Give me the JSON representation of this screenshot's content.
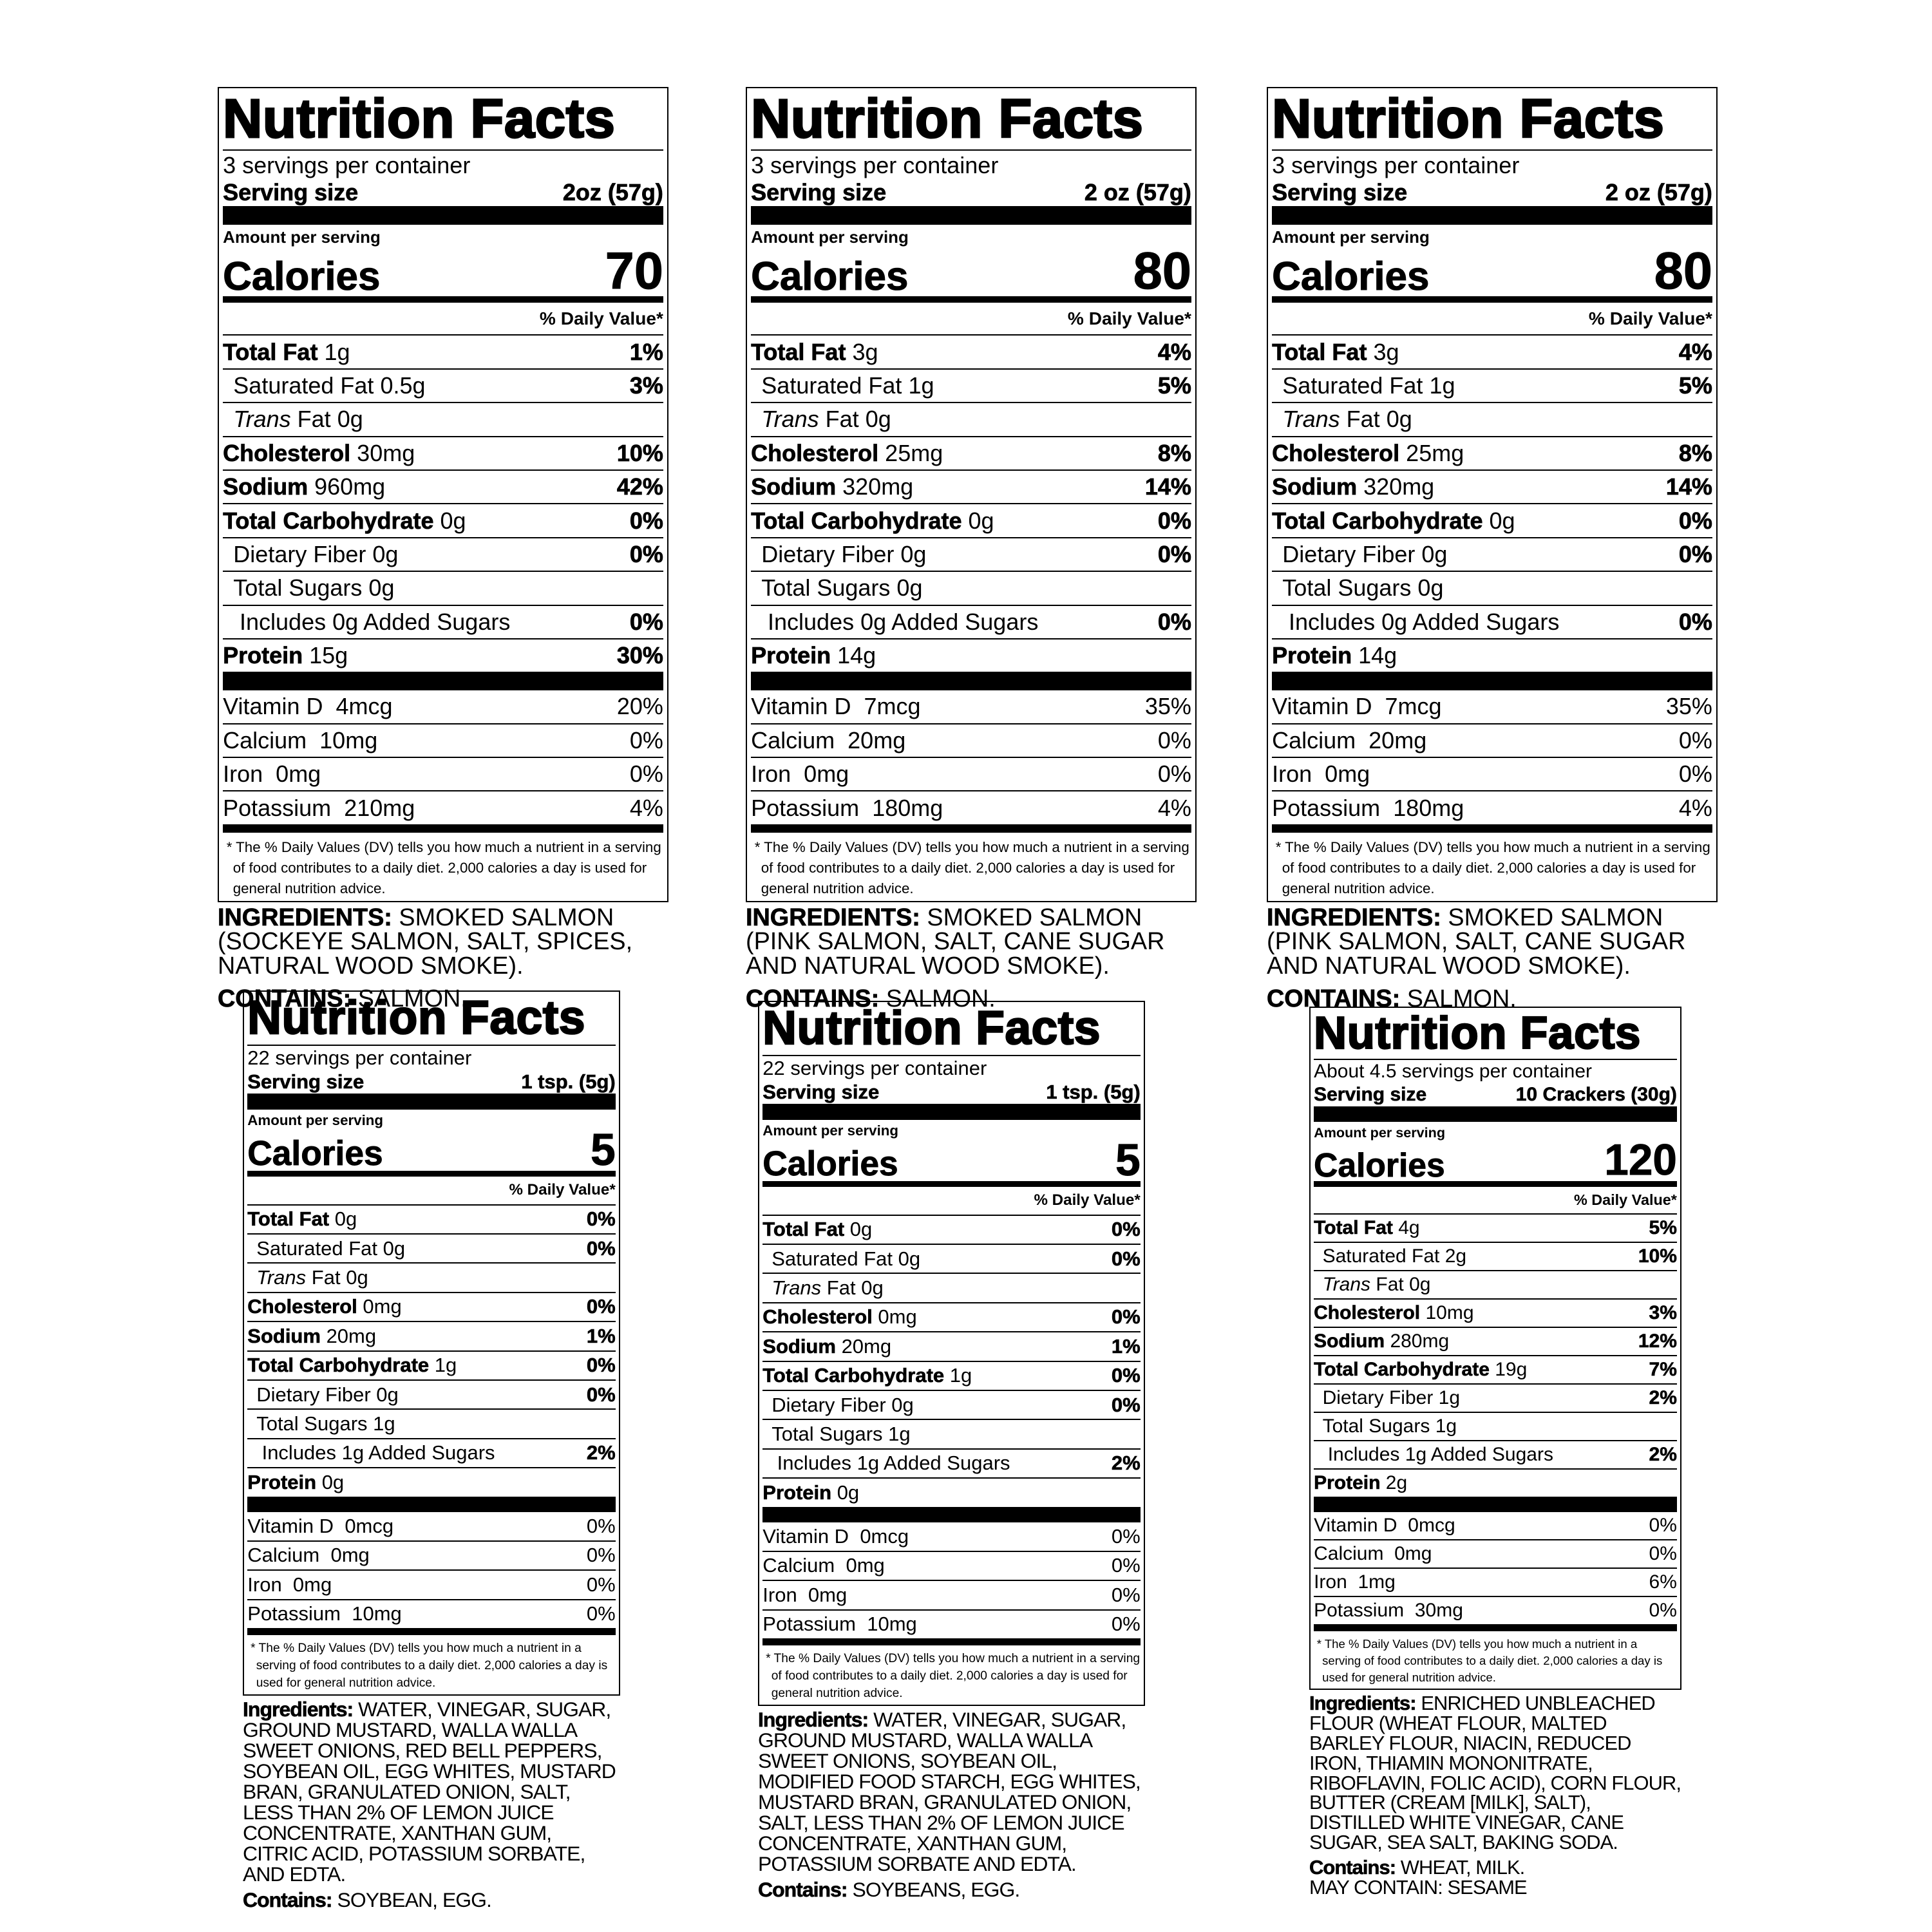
{
  "footnote": "* The % Daily Values (DV) tells you how much a nutrient in a serving of food contributes to a daily diet. 2,000 calories a day is used for general nutrition advice.",
  "title": "Nutrition Facts",
  "amount_per_serving": "Amount per serving",
  "calories_label": "Calories",
  "dv_header": "% Daily Value*",
  "serving_size_label": "Serving size",
  "labels": [
    {
      "servings": "3 servings per container",
      "serving_size": "2oz (57g)",
      "calories": "70",
      "nutrients": [
        {
          "name": "Total Fat",
          "amount": "1g",
          "dv": "1%",
          "bold": true,
          "indent": 0
        },
        {
          "name": "Saturated Fat",
          "amount": "0.5g",
          "dv": "3%",
          "indent": 1
        },
        {
          "italic": "Trans",
          "name": "Fat",
          "amount": "0g",
          "dv": "",
          "indent": 1
        },
        {
          "name": "Cholesterol",
          "amount": "30mg",
          "dv": "10%",
          "bold": true,
          "indent": 0
        },
        {
          "name": "Sodium",
          "amount": "960mg",
          "dv": "42%",
          "bold": true,
          "indent": 0
        },
        {
          "name": "Total Carbohydrate",
          "amount": "0g",
          "dv": "0%",
          "bold": true,
          "indent": 0
        },
        {
          "name": "Dietary Fiber",
          "amount": "0g",
          "dv": "0%",
          "indent": 1
        },
        {
          "name": "Total Sugars",
          "amount": "0g",
          "dv": "",
          "indent": 1
        },
        {
          "name": "Includes 0g Added Sugars",
          "amount": "",
          "dv": "0%",
          "indent": 2
        },
        {
          "name": "Protein",
          "amount": "15g",
          "dv": "30%",
          "bold": true,
          "indent": 0
        }
      ],
      "vitamins": [
        {
          "name": "Vitamin D",
          "amount": "4mcg",
          "dv": "20%"
        },
        {
          "name": "Calcium",
          "amount": "10mg",
          "dv": "0%"
        },
        {
          "name": "Iron",
          "amount": "0mg",
          "dv": "0%"
        },
        {
          "name": "Potassium",
          "amount": "210mg",
          "dv": "4%"
        }
      ],
      "ingredients_label": "INGREDIENTS:",
      "ingredients": "SMOKED SALMON (SOCKEYE SALMON, SALT, SPICES, NATURAL WOOD SMOKE).",
      "contains_label": "CONTAINS:",
      "contains": "SALMON.",
      "may_contain": ""
    },
    {
      "servings": "3 servings per container",
      "serving_size": "2 oz (57g)",
      "calories": "80",
      "nutrients": [
        {
          "name": "Total Fat",
          "amount": "3g",
          "dv": "4%",
          "bold": true,
          "indent": 0
        },
        {
          "name": "Saturated Fat",
          "amount": "1g",
          "dv": "5%",
          "indent": 1
        },
        {
          "italic": "Trans",
          "name": "Fat",
          "amount": "0g",
          "dv": "",
          "indent": 1
        },
        {
          "name": "Cholesterol",
          "amount": "25mg",
          "dv": "8%",
          "bold": true,
          "indent": 0
        },
        {
          "name": "Sodium",
          "amount": "320mg",
          "dv": "14%",
          "bold": true,
          "indent": 0
        },
        {
          "name": "Total Carbohydrate",
          "amount": "0g",
          "dv": "0%",
          "bold": true,
          "indent": 0
        },
        {
          "name": "Dietary Fiber",
          "amount": "0g",
          "dv": "0%",
          "indent": 1
        },
        {
          "name": "Total Sugars",
          "amount": "0g",
          "dv": "",
          "indent": 1
        },
        {
          "name": "Includes 0g Added Sugars",
          "amount": "",
          "dv": "0%",
          "indent": 2
        },
        {
          "name": "Protein",
          "amount": "14g",
          "dv": "",
          "bold": true,
          "indent": 0
        }
      ],
      "vitamins": [
        {
          "name": "Vitamin D",
          "amount": "7mcg",
          "dv": "35%"
        },
        {
          "name": "Calcium",
          "amount": "20mg",
          "dv": "0%"
        },
        {
          "name": "Iron",
          "amount": "0mg",
          "dv": "0%"
        },
        {
          "name": "Potassium",
          "amount": "180mg",
          "dv": "4%"
        }
      ],
      "ingredients_label": "INGREDIENTS:",
      "ingredients": "SMOKED SALMON (PINK SALMON, SALT, CANE SUGAR AND NATURAL WOOD SMOKE).",
      "contains_label": "CONTAINS:",
      "contains": "SALMON.",
      "may_contain": ""
    },
    {
      "servings": "3 servings per container",
      "serving_size": "2 oz (57g)",
      "calories": "80",
      "nutrients": [
        {
          "name": "Total Fat",
          "amount": "3g",
          "dv": "4%",
          "bold": true,
          "indent": 0
        },
        {
          "name": "Saturated Fat",
          "amount": "1g",
          "dv": "5%",
          "indent": 1
        },
        {
          "italic": "Trans",
          "name": "Fat",
          "amount": "0g",
          "dv": "",
          "indent": 1
        },
        {
          "name": "Cholesterol",
          "amount": "25mg",
          "dv": "8%",
          "bold": true,
          "indent": 0
        },
        {
          "name": "Sodium",
          "amount": "320mg",
          "dv": "14%",
          "bold": true,
          "indent": 0
        },
        {
          "name": "Total Carbohydrate",
          "amount": "0g",
          "dv": "0%",
          "bold": true,
          "indent": 0
        },
        {
          "name": "Dietary Fiber",
          "amount": "0g",
          "dv": "0%",
          "indent": 1
        },
        {
          "name": "Total Sugars",
          "amount": "0g",
          "dv": "",
          "indent": 1
        },
        {
          "name": "Includes 0g Added Sugars",
          "amount": "",
          "dv": "0%",
          "indent": 2
        },
        {
          "name": "Protein",
          "amount": "14g",
          "dv": "",
          "bold": true,
          "indent": 0
        }
      ],
      "vitamins": [
        {
          "name": "Vitamin D",
          "amount": "7mcg",
          "dv": "35%"
        },
        {
          "name": "Calcium",
          "amount": "20mg",
          "dv": "0%"
        },
        {
          "name": "Iron",
          "amount": "0mg",
          "dv": "0%"
        },
        {
          "name": "Potassium",
          "amount": "180mg",
          "dv": "4%"
        }
      ],
      "ingredients_label": "INGREDIENTS:",
      "ingredients": "SMOKED SALMON (PINK SALMON, SALT, CANE SUGAR AND NATURAL WOOD SMOKE).",
      "contains_label": "CONTAINS:",
      "contains": "SALMON.",
      "may_contain": ""
    },
    {
      "servings": "22 servings per container",
      "serving_size": "1 tsp. (5g)",
      "calories": "5",
      "nutrients": [
        {
          "name": "Total Fat",
          "amount": "0g",
          "dv": "0%",
          "bold": true,
          "indent": 0
        },
        {
          "name": "Saturated Fat",
          "amount": "0g",
          "dv": "0%",
          "indent": 1
        },
        {
          "italic": "Trans",
          "name": "Fat",
          "amount": "0g",
          "dv": "",
          "indent": 1
        },
        {
          "name": "Cholesterol",
          "amount": "0mg",
          "dv": "0%",
          "bold": true,
          "indent": 0
        },
        {
          "name": "Sodium",
          "amount": "20mg",
          "dv": "1%",
          "bold": true,
          "indent": 0
        },
        {
          "name": "Total Carbohydrate",
          "amount": "1g",
          "dv": "0%",
          "bold": true,
          "indent": 0
        },
        {
          "name": "Dietary Fiber",
          "amount": "0g",
          "dv": "0%",
          "indent": 1
        },
        {
          "name": "Total Sugars",
          "amount": "1g",
          "dv": "",
          "indent": 1
        },
        {
          "name": "Includes 1g Added Sugars",
          "amount": "",
          "dv": "2%",
          "indent": 2
        },
        {
          "name": "Protein",
          "amount": "0g",
          "dv": "",
          "bold": true,
          "indent": 0
        }
      ],
      "vitamins": [
        {
          "name": "Vitamin D",
          "amount": "0mcg",
          "dv": "0%"
        },
        {
          "name": "Calcium",
          "amount": "0mg",
          "dv": "0%"
        },
        {
          "name": "Iron",
          "amount": "0mg",
          "dv": "0%"
        },
        {
          "name": "Potassium",
          "amount": "10mg",
          "dv": "0%"
        }
      ],
      "ingredients_label": "Ingredients:",
      "ingredients": "WATER, VINEGAR, SUGAR, GROUND MUSTARD, WALLA WALLA SWEET ONIONS, RED BELL PEPPERS, SOYBEAN OIL, EGG WHITES, MUSTARD BRAN, GRANULATED ONION, SALT, LESS THAN 2% OF LEMON JUICE CONCENTRATE, XANTHAN GUM, CITRIC ACID, POTASSIUM SORBATE, AND EDTA.",
      "contains_label": "Contains:",
      "contains": "SOYBEAN, EGG.",
      "may_contain": ""
    },
    {
      "servings": "22 servings per container",
      "serving_size": "1 tsp. (5g)",
      "calories": "5",
      "nutrients": [
        {
          "name": "Total Fat",
          "amount": "0g",
          "dv": "0%",
          "bold": true,
          "indent": 0
        },
        {
          "name": "Saturated Fat",
          "amount": "0g",
          "dv": "0%",
          "indent": 1
        },
        {
          "italic": "Trans",
          "name": "Fat",
          "amount": "0g",
          "dv": "",
          "indent": 1
        },
        {
          "name": "Cholesterol",
          "amount": "0mg",
          "dv": "0%",
          "bold": true,
          "indent": 0
        },
        {
          "name": "Sodium",
          "amount": "20mg",
          "dv": "1%",
          "bold": true,
          "indent": 0
        },
        {
          "name": "Total Carbohydrate",
          "amount": "1g",
          "dv": "0%",
          "bold": true,
          "indent": 0
        },
        {
          "name": "Dietary Fiber",
          "amount": "0g",
          "dv": "0%",
          "indent": 1
        },
        {
          "name": "Total Sugars",
          "amount": "1g",
          "dv": "",
          "indent": 1
        },
        {
          "name": "Includes 1g Added Sugars",
          "amount": "",
          "dv": "2%",
          "indent": 2
        },
        {
          "name": "Protein",
          "amount": "0g",
          "dv": "",
          "bold": true,
          "indent": 0
        }
      ],
      "vitamins": [
        {
          "name": "Vitamin D",
          "amount": "0mcg",
          "dv": "0%"
        },
        {
          "name": "Calcium",
          "amount": "0mg",
          "dv": "0%"
        },
        {
          "name": "Iron",
          "amount": "0mg",
          "dv": "0%"
        },
        {
          "name": "Potassium",
          "amount": "10mg",
          "dv": "0%"
        }
      ],
      "ingredients_label": "Ingredients:",
      "ingredients": "WATER, VINEGAR, SUGAR, GROUND MUSTARD, WALLA WALLA SWEET ONIONS, SOYBEAN OIL, MODIFIED FOOD STARCH, EGG WHITES, MUSTARD BRAN, GRANULATED ONION, SALT, LESS THAN 2% OF LEMON JUICE CONCENTRATE, XANTHAN GUM, POTASSIUM SORBATE AND EDTA.",
      "contains_label": "Contains:",
      "contains": "SOYBEANS, EGG.",
      "may_contain": ""
    },
    {
      "servings": "About 4.5 servings per container",
      "serving_size": "10 Crackers (30g)",
      "calories": "120",
      "nutrients": [
        {
          "name": "Total Fat",
          "amount": "4g",
          "dv": "5%",
          "bold": true,
          "indent": 0
        },
        {
          "name": "Saturated Fat",
          "amount": "2g",
          "dv": "10%",
          "indent": 1
        },
        {
          "italic": "Trans",
          "name": "Fat",
          "amount": "0g",
          "dv": "",
          "indent": 1
        },
        {
          "name": "Cholesterol",
          "amount": "10mg",
          "dv": "3%",
          "bold": true,
          "indent": 0
        },
        {
          "name": "Sodium",
          "amount": "280mg",
          "dv": "12%",
          "bold": true,
          "indent": 0
        },
        {
          "name": "Total Carbohydrate",
          "amount": "19g",
          "dv": "7%",
          "bold": true,
          "indent": 0
        },
        {
          "name": "Dietary Fiber",
          "amount": "1g",
          "dv": "2%",
          "indent": 1
        },
        {
          "name": "Total Sugars",
          "amount": "1g",
          "dv": "",
          "indent": 1
        },
        {
          "name": "Includes 1g Added Sugars",
          "amount": "",
          "dv": "2%",
          "indent": 2
        },
        {
          "name": "Protein",
          "amount": "2g",
          "dv": "",
          "bold": true,
          "indent": 0
        }
      ],
      "vitamins": [
        {
          "name": "Vitamin D",
          "amount": "0mcg",
          "dv": "0%"
        },
        {
          "name": "Calcium",
          "amount": "0mg",
          "dv": "0%"
        },
        {
          "name": "Iron",
          "amount": "1mg",
          "dv": "6%"
        },
        {
          "name": "Potassium",
          "amount": "30mg",
          "dv": "0%"
        }
      ],
      "ingredients_label": "Ingredients:",
      "ingredients": "ENRICHED UNBLEACHED FLOUR (WHEAT FLOUR, MALTED BARLEY FLOUR, NIACIN, REDUCED IRON, THIAMIN MONONITRATE, RIBOFLAVIN, FOLIC ACID), CORN FLOUR, BUTTER (CREAM [MILK], SALT), DISTILLED WHITE VINEGAR, CANE SUGAR, SEA SALT, BAKING SODA.",
      "contains_label": "Contains:",
      "contains": "WHEAT, MILK.",
      "may_contain": "MAY CONTAIN: SESAME"
    }
  ]
}
